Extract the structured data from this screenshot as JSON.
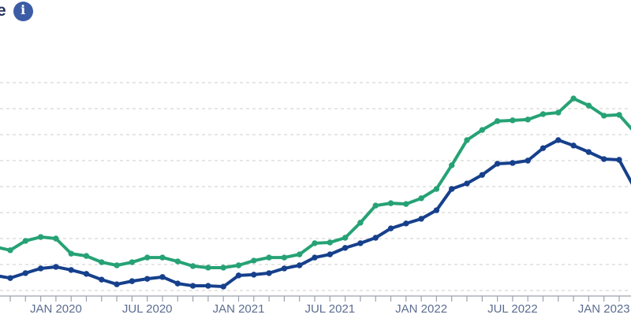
{
  "header": {
    "title_fragment": "e",
    "info_glyph": "i"
  },
  "colors": {
    "background": "#ffffff",
    "title_text": "#25305c",
    "info_icon_bg": "#3c5ca5",
    "gridline": "#cdcdcd",
    "axis": "#9aa2ad",
    "axis_label": "#5c6d90",
    "series_green": "#26a275",
    "series_navy": "#16408c"
  },
  "chart_data": {
    "type": "line",
    "title": "",
    "xlabel": "",
    "ylabel": "",
    "grid": "horizontal-dashed",
    "legend": "none",
    "markers": true,
    "y_axis_labels_visible": false,
    "note": "y values expressed in gridline units (no y-axis tick labels visible in crop); 9 dashed gridlines spaced 1 unit apart; chart cropped at left and right edges",
    "ylim": [
      0,
      8.45
    ],
    "x_tick_labels": [
      "JAN 2020",
      "JUL 2020",
      "JAN 2021",
      "JUL 2021",
      "JAN 2022",
      "JUL 2022",
      "JAN 2023"
    ],
    "x": [
      "SEP 2019",
      "OCT 2019",
      "NOV 2019",
      "DEC 2019",
      "JAN 2020",
      "FEB 2020",
      "MAR 2020",
      "APR 2020",
      "MAY 2020",
      "JUN 2020",
      "JUL 2020",
      "AUG 2020",
      "SEP 2020",
      "OCT 2020",
      "NOV 2020",
      "DEC 2020",
      "JAN 2021",
      "FEB 2021",
      "MAR 2021",
      "APR 2021",
      "MAY 2021",
      "JUN 2021",
      "JUL 2021",
      "AUG 2021",
      "SEP 2021",
      "OCT 2021",
      "NOV 2021",
      "DEC 2021",
      "JAN 2022",
      "FEB 2022",
      "MAR 2022",
      "APR 2022",
      "MAY 2022",
      "JUN 2022",
      "JUL 2022",
      "AUG 2022",
      "SEP 2022",
      "OCT 2022",
      "NOV 2022",
      "DEC 2022",
      "JAN 2023",
      "FEB 2023",
      "MAR 2023"
    ],
    "series": [
      {
        "name": "green",
        "color": "#26a275",
        "values": [
          1.68,
          1.55,
          1.91,
          2.06,
          2.0,
          1.42,
          1.33,
          1.09,
          0.97,
          1.09,
          1.27,
          1.27,
          1.12,
          0.94,
          0.88,
          0.88,
          0.97,
          1.15,
          1.27,
          1.27,
          1.39,
          1.82,
          1.85,
          2.03,
          2.61,
          3.27,
          3.36,
          3.33,
          3.55,
          3.91,
          4.82,
          5.79,
          6.18,
          6.52,
          6.55,
          6.58,
          6.79,
          6.85,
          7.39,
          7.12,
          6.73,
          6.76,
          6.1
        ]
      },
      {
        "name": "navy",
        "color": "#16408c",
        "values": [
          0.58,
          0.48,
          0.67,
          0.85,
          0.91,
          0.79,
          0.64,
          0.42,
          0.24,
          0.36,
          0.45,
          0.52,
          0.27,
          0.18,
          0.18,
          0.15,
          0.58,
          0.61,
          0.67,
          0.85,
          0.97,
          1.27,
          1.39,
          1.64,
          1.82,
          2.03,
          2.39,
          2.58,
          2.76,
          3.09,
          3.91,
          4.12,
          4.45,
          4.88,
          4.91,
          5.0,
          5.48,
          5.79,
          5.58,
          5.33,
          5.06,
          5.03,
          3.95
        ]
      }
    ]
  }
}
